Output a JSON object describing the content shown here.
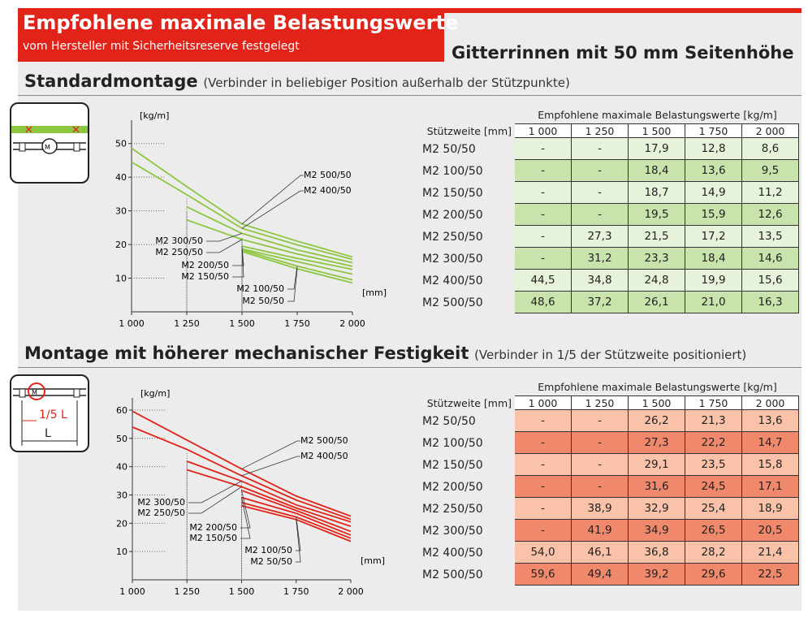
{
  "header": {
    "title": "Empfohlene maximale Belastungswerte",
    "subtitle": "vom Hersteller mit Sicherheitsreserve festgelegt",
    "product": "Gitterrinnen mit 50 mm Seitenhöhe"
  },
  "colors": {
    "accent": "#e2231a",
    "green_line": "#8cc63f",
    "red_line": "#e2231a",
    "green_light": "#e6f2d9",
    "green_dark": "#c9e3ac",
    "red_light": "#f9c2a9",
    "red_dark": "#f0896c"
  },
  "sections": [
    {
      "title": "Standardmontage",
      "note": "(Verbinder in beliebiger Position außerhalb der Stützpunkte)",
      "table": {
        "caption": "Empfohlene maximale Belastungswerte [kg/m]",
        "row_header": "Stützweite [mm]",
        "columns": [
          "1 000",
          "1 250",
          "1 500",
          "1 750",
          "2 000"
        ],
        "rows": [
          {
            "label": "M2 50/50",
            "cells": [
              "-",
              "-",
              "17,9",
              "12,8",
              "8,6"
            ]
          },
          {
            "label": "M2 100/50",
            "cells": [
              "-",
              "-",
              "18,4",
              "13,6",
              "9,5"
            ]
          },
          {
            "label": "M2 150/50",
            "cells": [
              "-",
              "-",
              "18,7",
              "14,9",
              "11,2"
            ]
          },
          {
            "label": "M2 200/50",
            "cells": [
              "-",
              "-",
              "19,5",
              "15,9",
              "12,6"
            ]
          },
          {
            "label": "M2 250/50",
            "cells": [
              "-",
              "27,3",
              "21,5",
              "17,2",
              "13,5"
            ]
          },
          {
            "label": "M2 300/50",
            "cells": [
              "-",
              "31,2",
              "23,3",
              "18,4",
              "14,6"
            ]
          },
          {
            "label": "M2 400/50",
            "cells": [
              "44,5",
              "34,8",
              "24,8",
              "19,9",
              "15,6"
            ]
          },
          {
            "label": "M2 500/50",
            "cells": [
              "48,6",
              "37,2",
              "26,1",
              "21,0",
              "16,3"
            ]
          }
        ]
      }
    },
    {
      "title": "Montage mit höherer mechanischer Festigkeit",
      "note": "(Verbinder in 1/5 der Stützweite positioniert)",
      "table": {
        "caption": "Empfohlene maximale Belastungswerte [kg/m]",
        "row_header": "Stützweite [mm]",
        "columns": [
          "1 000",
          "1 250",
          "1 500",
          "1 750",
          "2 000"
        ],
        "rows": [
          {
            "label": "M2 50/50",
            "cells": [
              "-",
              "-",
              "26,2",
              "21,3",
              "13,6"
            ]
          },
          {
            "label": "M2 100/50",
            "cells": [
              "-",
              "-",
              "27,3",
              "22,2",
              "14,7"
            ]
          },
          {
            "label": "M2 150/50",
            "cells": [
              "-",
              "-",
              "29,1",
              "23,5",
              "15,8"
            ]
          },
          {
            "label": "M2 200/50",
            "cells": [
              "-",
              "-",
              "31,6",
              "24,5",
              "17,1"
            ]
          },
          {
            "label": "M2 250/50",
            "cells": [
              "-",
              "38,9",
              "32,9",
              "25,4",
              "18,9"
            ]
          },
          {
            "label": "M2 300/50",
            "cells": [
              "-",
              "41,9",
              "34,9",
              "26,5",
              "20,5"
            ]
          },
          {
            "label": "M2 400/50",
            "cells": [
              "54,0",
              "46,1",
              "36,8",
              "28,2",
              "21,4"
            ]
          },
          {
            "label": "M2 500/50",
            "cells": [
              "59,6",
              "49,4",
              "39,2",
              "29,6",
              "22,5"
            ]
          }
        ]
      }
    }
  ],
  "icon_labels": {
    "fraction": "1/5 L",
    "span": "L"
  },
  "chart_data": [
    {
      "type": "line",
      "ylabel": "[kg/m]",
      "xlabel": "[mm]",
      "x": [
        1000,
        1250,
        1500,
        1750,
        2000
      ],
      "x_ticks": [
        "1 000",
        "1 250",
        "1 500",
        "1 750",
        "2 000"
      ],
      "xlim": [
        1000,
        2000
      ],
      "ylim": [
        0,
        55
      ],
      "y_ticks": [
        "10",
        "20",
        "30",
        "40",
        "50"
      ],
      "series": [
        {
          "name": "M2 50/50",
          "values": [
            null,
            null,
            17.9,
            12.8,
            8.6
          ]
        },
        {
          "name": "M2 100/50",
          "values": [
            null,
            null,
            18.4,
            13.6,
            9.5
          ]
        },
        {
          "name": "M2 150/50",
          "values": [
            null,
            null,
            18.7,
            14.9,
            11.2
          ]
        },
        {
          "name": "M2 200/50",
          "values": [
            null,
            null,
            19.5,
            15.9,
            12.6
          ]
        },
        {
          "name": "M2 250/50",
          "values": [
            null,
            27.3,
            21.5,
            17.2,
            13.5
          ]
        },
        {
          "name": "M2 300/50",
          "values": [
            null,
            31.2,
            23.3,
            18.4,
            14.6
          ]
        },
        {
          "name": "M2 400/50",
          "values": [
            44.5,
            34.8,
            24.8,
            19.9,
            15.6
          ]
        },
        {
          "name": "M2 500/50",
          "values": [
            48.6,
            37.2,
            26.1,
            21.0,
            16.3
          ]
        }
      ]
    },
    {
      "type": "line",
      "ylabel": "[kg/m]",
      "xlabel": "[mm]",
      "x": [
        1000,
        1250,
        1500,
        1750,
        2000
      ],
      "x_ticks": [
        "1 000",
        "1 250",
        "1 500",
        "1 750",
        "2 000"
      ],
      "xlim": [
        1000,
        2000
      ],
      "ylim": [
        0,
        62
      ],
      "y_ticks": [
        "10",
        "20",
        "30",
        "40",
        "50",
        "60"
      ],
      "series": [
        {
          "name": "M2 50/50",
          "values": [
            null,
            null,
            26.2,
            21.3,
            13.6
          ]
        },
        {
          "name": "M2 100/50",
          "values": [
            null,
            null,
            27.3,
            22.2,
            14.7
          ]
        },
        {
          "name": "M2 150/50",
          "values": [
            null,
            null,
            29.1,
            23.5,
            15.8
          ]
        },
        {
          "name": "M2 200/50",
          "values": [
            null,
            null,
            31.6,
            24.5,
            17.1
          ]
        },
        {
          "name": "M2 250/50",
          "values": [
            null,
            38.9,
            32.9,
            25.4,
            18.9
          ]
        },
        {
          "name": "M2 300/50",
          "values": [
            null,
            41.9,
            34.9,
            26.5,
            20.5
          ]
        },
        {
          "name": "M2 400/50",
          "values": [
            54.0,
            46.1,
            36.8,
            28.2,
            21.4
          ]
        },
        {
          "name": "M2 500/50",
          "values": [
            59.6,
            49.4,
            39.2,
            29.6,
            22.5
          ]
        }
      ]
    }
  ]
}
